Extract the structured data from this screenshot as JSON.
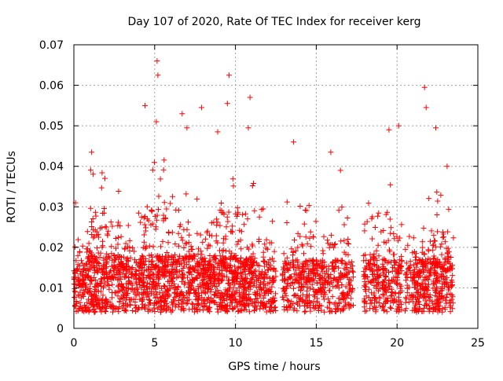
{
  "chart_data": {
    "type": "scatter",
    "title": "Day 107 of 2020, Rate Of TEC Index for receiver kerg",
    "xlabel": "GPS time / hours",
    "ylabel": "ROTI / TECUs",
    "xlim": [
      0,
      25
    ],
    "ylim": [
      0,
      0.07
    ],
    "xticks": [
      0,
      5,
      10,
      15,
      20,
      25
    ],
    "yticks": [
      0,
      0.01,
      0.02,
      0.03,
      0.04,
      0.05,
      0.06,
      0.07
    ],
    "xtick_labels": [
      "0",
      "5",
      "10",
      "15",
      "20",
      "25"
    ],
    "ytick_labels": [
      "0",
      "0.01",
      "0.02",
      "0.03",
      "0.04",
      "0.05",
      "0.06",
      "0.07"
    ],
    "grid": true,
    "marker": "plus",
    "color": "#ff0000",
    "data_gaps_hours": [
      [
        12.5,
        12.9
      ],
      [
        17.3,
        17.9
      ],
      [
        20.3,
        20.5
      ],
      [
        23.5,
        25
      ]
    ],
    "notable_points": [
      {
        "x": 0.1,
        "y": 0.031
      },
      {
        "x": 1.1,
        "y": 0.0435
      },
      {
        "x": 4.4,
        "y": 0.055
      },
      {
        "x": 5.15,
        "y": 0.066
      },
      {
        "x": 5.2,
        "y": 0.0625
      },
      {
        "x": 5.1,
        "y": 0.051
      },
      {
        "x": 6.7,
        "y": 0.053
      },
      {
        "x": 7.0,
        "y": 0.0495
      },
      {
        "x": 7.9,
        "y": 0.0545
      },
      {
        "x": 8.9,
        "y": 0.0485
      },
      {
        "x": 9.6,
        "y": 0.0625
      },
      {
        "x": 9.5,
        "y": 0.0555
      },
      {
        "x": 10.9,
        "y": 0.057
      },
      {
        "x": 10.8,
        "y": 0.0495
      },
      {
        "x": 13.6,
        "y": 0.046
      },
      {
        "x": 15.9,
        "y": 0.0435
      },
      {
        "x": 16.5,
        "y": 0.039
      },
      {
        "x": 19.5,
        "y": 0.049
      },
      {
        "x": 20.1,
        "y": 0.05
      },
      {
        "x": 21.7,
        "y": 0.0595
      },
      {
        "x": 21.8,
        "y": 0.0545
      },
      {
        "x": 22.4,
        "y": 0.0495
      },
      {
        "x": 23.1,
        "y": 0.04
      }
    ],
    "activity_profile": [
      {
        "x0": 0.0,
        "x1": 0.8,
        "base": 0.01,
        "peak": 0.03,
        "density": 1.0
      },
      {
        "x0": 0.8,
        "x1": 2.0,
        "base": 0.013,
        "peak": 0.04,
        "density": 1.3
      },
      {
        "x0": 2.0,
        "x1": 3.0,
        "base": 0.012,
        "peak": 0.035,
        "density": 1.0
      },
      {
        "x0": 3.0,
        "x1": 4.0,
        "base": 0.011,
        "peak": 0.03,
        "density": 0.9
      },
      {
        "x0": 4.0,
        "x1": 6.5,
        "base": 0.012,
        "peak": 0.042,
        "density": 1.2
      },
      {
        "x0": 6.5,
        "x1": 9.0,
        "base": 0.012,
        "peak": 0.035,
        "density": 1.1
      },
      {
        "x0": 9.0,
        "x1": 11.2,
        "base": 0.012,
        "peak": 0.04,
        "density": 1.3
      },
      {
        "x0": 11.2,
        "x1": 12.5,
        "base": 0.011,
        "peak": 0.03,
        "density": 0.9
      },
      {
        "x0": 12.9,
        "x1": 15.0,
        "base": 0.011,
        "peak": 0.032,
        "density": 0.9
      },
      {
        "x0": 15.0,
        "x1": 17.3,
        "base": 0.011,
        "peak": 0.03,
        "density": 0.8
      },
      {
        "x0": 17.9,
        "x1": 20.3,
        "base": 0.012,
        "peak": 0.038,
        "density": 0.9
      },
      {
        "x0": 20.5,
        "x1": 21.5,
        "base": 0.011,
        "peak": 0.028,
        "density": 0.9
      },
      {
        "x0": 21.5,
        "x1": 23.5,
        "base": 0.012,
        "peak": 0.035,
        "density": 1.1
      }
    ]
  }
}
